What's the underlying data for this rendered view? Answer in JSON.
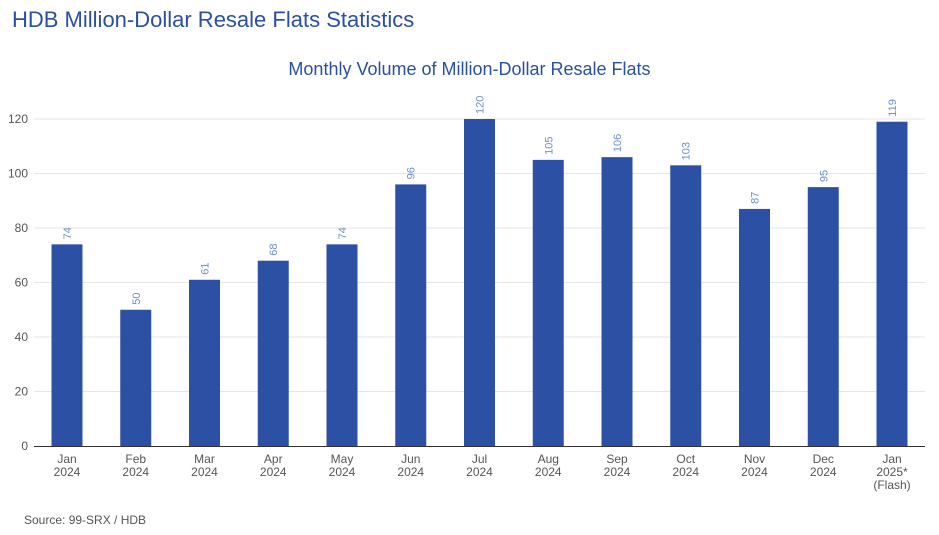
{
  "page_title": "HDB Million-Dollar Resale Flats Statistics",
  "source": "Source: 99-SRX / HDB",
  "chart_data": {
    "type": "bar",
    "title": "Monthly Volume of Million-Dollar Resale Flats",
    "xlabel": "",
    "ylabel": "",
    "categories": [
      [
        "Jan",
        "2024"
      ],
      [
        "Feb",
        "2024"
      ],
      [
        "Mar",
        "2024"
      ],
      [
        "Apr",
        "2024"
      ],
      [
        "May",
        "2024"
      ],
      [
        "Jun",
        "2024"
      ],
      [
        "Jul",
        "2024"
      ],
      [
        "Aug",
        "2024"
      ],
      [
        "Sep",
        "2024"
      ],
      [
        "Oct",
        "2024"
      ],
      [
        "Nov",
        "2024"
      ],
      [
        "Dec",
        "2024"
      ],
      [
        "Jan",
        "2025*",
        "(Flash)"
      ]
    ],
    "values": [
      74,
      50,
      61,
      68,
      74,
      96,
      120,
      105,
      106,
      103,
      87,
      95,
      119
    ],
    "ylim": [
      0,
      120
    ],
    "yticks": [
      0,
      20,
      40,
      60,
      80,
      100,
      120
    ],
    "grid": true,
    "legend": "none",
    "colors": {
      "bar": "#2b50a4",
      "label": "#6f8fc9",
      "title": "#2a4fa3",
      "axis_text": "#555555",
      "grid": "#e6e6e6",
      "baseline": "#333333"
    }
  }
}
